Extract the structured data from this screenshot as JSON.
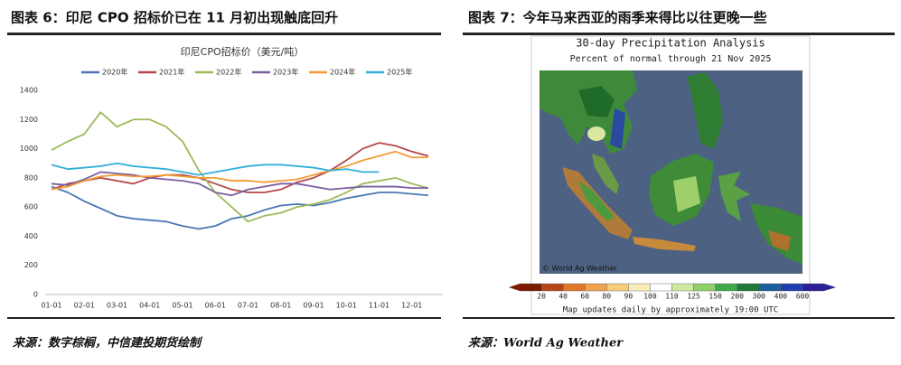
{
  "left_figure": {
    "heading": "图表 6：印尼 CPO 招标价已在 11 月初出现触底回升",
    "source": "来源：数字棕榈，中信建投期货绘制"
  },
  "chart_data": {
    "type": "line",
    "title": "印尼CPO招标价（美元/吨）",
    "categories": [
      "01-01",
      null,
      "02-01",
      null,
      "03-01",
      null,
      "04-01",
      null,
      "05-01",
      null,
      "06-01",
      null,
      "07-01",
      null,
      "08-01",
      null,
      "09-01",
      null,
      "10-01",
      null,
      "11-01",
      null,
      "12-01",
      null
    ],
    "ylim": [
      0,
      1400
    ],
    "yticks": [
      0,
      200,
      400,
      600,
      800,
      1000,
      1200,
      1400
    ],
    "series": [
      {
        "name": "2020年",
        "color": "#4a77b4",
        "values": [
          740,
          700,
          640,
          590,
          540,
          520,
          510,
          500,
          470,
          450,
          470,
          520,
          540,
          580,
          610,
          620,
          610,
          630,
          660,
          680,
          700,
          700,
          690,
          680
        ]
      },
      {
        "name": "2021年",
        "color": "#b5474a",
        "values": [
          720,
          760,
          780,
          800,
          780,
          760,
          800,
          820,
          820,
          800,
          760,
          720,
          700,
          700,
          720,
          770,
          800,
          850,
          920,
          1000,
          1040,
          1020,
          980,
          950
        ]
      },
      {
        "name": "2022年",
        "color": "#9bbb59",
        "values": [
          990,
          1050,
          1100,
          1250,
          1150,
          1200,
          1200,
          1150,
          1050,
          850,
          700,
          600,
          500,
          540,
          560,
          600,
          620,
          650,
          700,
          760,
          780,
          800,
          760,
          730
        ]
      },
      {
        "name": "2023年",
        "color": "#7a5fa0",
        "values": [
          760,
          750,
          790,
          840,
          830,
          820,
          800,
          790,
          780,
          760,
          700,
          680,
          720,
          740,
          760,
          760,
          740,
          720,
          730,
          740,
          740,
          740,
          730,
          730
        ]
      },
      {
        "name": "2024年",
        "color": "#f39c34",
        "values": [
          720,
          740,
          780,
          810,
          820,
          810,
          810,
          820,
          810,
          800,
          800,
          780,
          780,
          770,
          780,
          790,
          820,
          850,
          880,
          920,
          950,
          980,
          940,
          940
        ]
      },
      {
        "name": "2025年",
        "color": "#32b0d8",
        "values": [
          890,
          860,
          870,
          880,
          900,
          880,
          870,
          860,
          840,
          820,
          840,
          860,
          880,
          890,
          890,
          880,
          870,
          850,
          860,
          840,
          840,
          null,
          null,
          null
        ]
      }
    ]
  },
  "right_figure": {
    "heading": "图表 7：今年马来西亚的雨季来得比以往更晚一些",
    "source": "来源：World Ag Weather",
    "map": {
      "title": "30-day Precipitation Analysis",
      "subtitle": "Percent of normal through 21 Nov 2025",
      "credit": "© World Ag Weather",
      "legend_labels": [
        "20",
        "40",
        "60",
        "80",
        "90",
        "100",
        "110",
        "125",
        "150",
        "200",
        "300",
        "400",
        "600"
      ],
      "note": "Map updates daily by approximately 19:00 UTC"
    }
  }
}
